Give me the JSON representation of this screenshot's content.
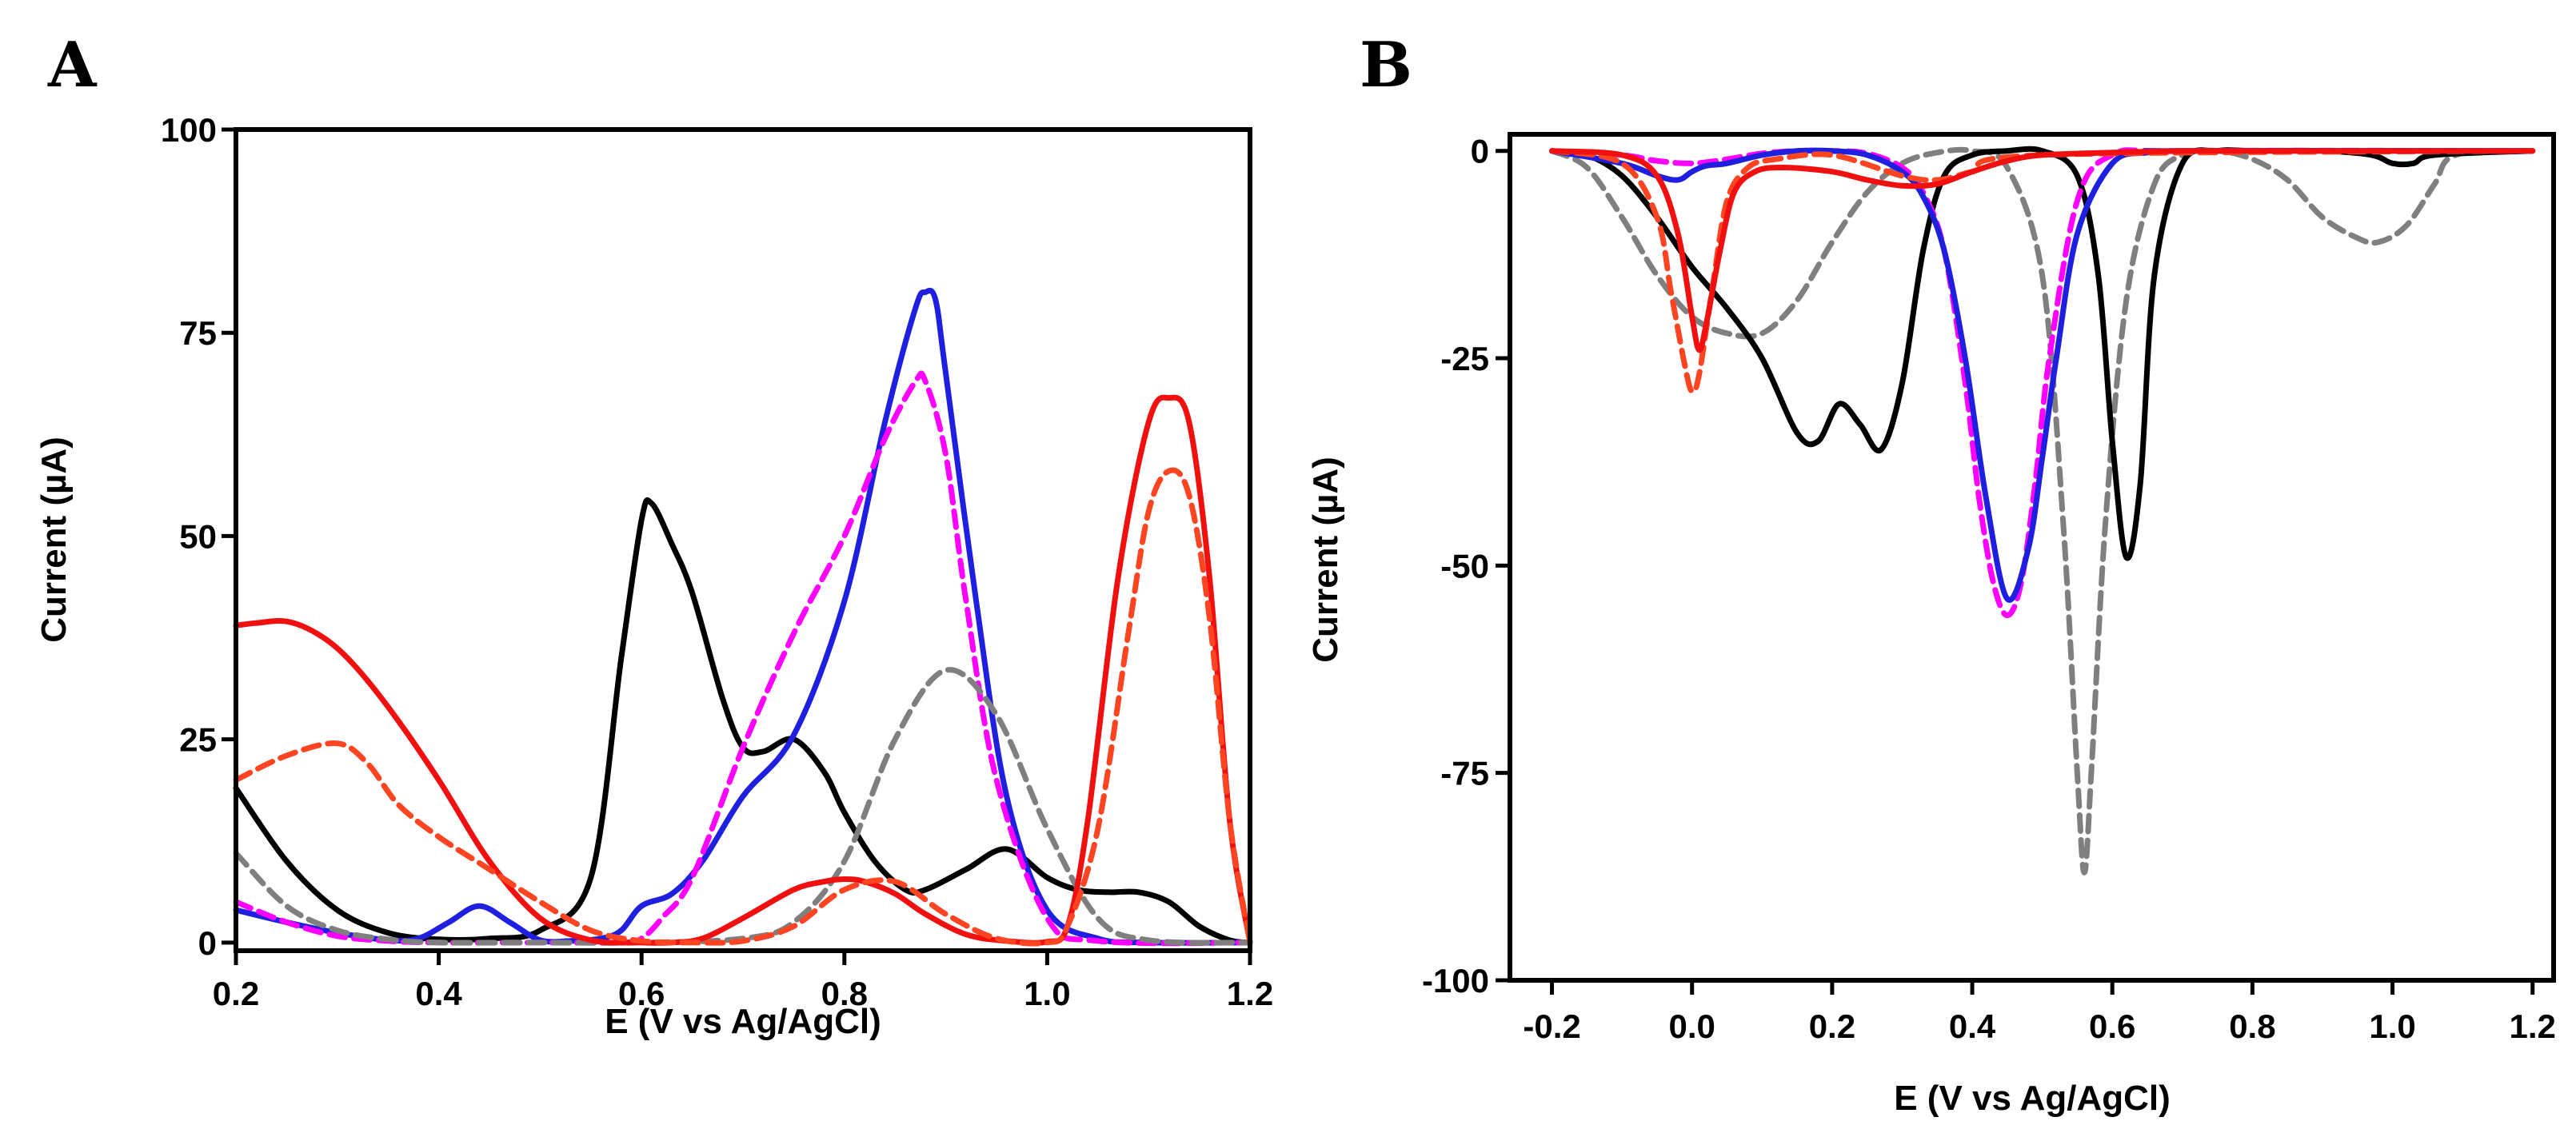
{
  "chart_data": [
    {
      "type": "line",
      "panel_label": "A",
      "xlabel": "E (V vs Ag/AgCl)",
      "ylabel": "Current (µA)",
      "xlim": [
        0.2,
        1.2
      ],
      "ylim": [
        -1,
        100
      ],
      "xticks": [
        0.2,
        0.4,
        0.6,
        0.8,
        1.0,
        1.2
      ],
      "xtick_labels": [
        "0.2",
        "0.4",
        "0.6",
        "0.8",
        "1.0",
        "1.2"
      ],
      "yticks": [
        0,
        25,
        50,
        75,
        100
      ],
      "ytick_labels": [
        "0",
        "25",
        "50",
        "75",
        "100"
      ],
      "grid": false,
      "series": [
        {
          "name": "black",
          "color": "#000000",
          "dashed": false,
          "x": [
            0.2,
            0.25,
            0.3,
            0.35,
            0.4,
            0.45,
            0.5,
            0.55,
            0.58,
            0.6,
            0.61,
            0.63,
            0.65,
            0.68,
            0.7,
            0.72,
            0.75,
            0.78,
            0.8,
            0.83,
            0.86,
            0.88,
            0.92,
            0.96,
            1.0,
            1.03,
            1.06,
            1.09,
            1.12,
            1.15,
            1.18,
            1.2
          ],
          "y": [
            19,
            10,
            4,
            1.2,
            0.4,
            0.5,
            1.5,
            8,
            35,
            52,
            54,
            49,
            43,
            30,
            24,
            23.5,
            25,
            21,
            16,
            10,
            6.5,
            6.5,
            9,
            11.5,
            8,
            6.5,
            6.2,
            6.2,
            5,
            2,
            0.3,
            0
          ]
        },
        {
          "name": "blue",
          "color": "#1f1fe0",
          "dashed": false,
          "x": [
            0.2,
            0.25,
            0.3,
            0.35,
            0.38,
            0.41,
            0.44,
            0.47,
            0.5,
            0.53,
            0.56,
            0.58,
            0.6,
            0.63,
            0.66,
            0.7,
            0.75,
            0.8,
            0.84,
            0.87,
            0.88,
            0.89,
            0.9,
            0.93,
            0.96,
            1.0,
            1.05,
            1.1,
            1.2
          ],
          "y": [
            4,
            2.5,
            1.2,
            0.3,
            0.5,
            2.5,
            4.5,
            2.5,
            0.3,
            0.2,
            0.5,
            1.5,
            4.5,
            6,
            10,
            18,
            25.5,
            42,
            64,
            78,
            80,
            79,
            70,
            42,
            18,
            4,
            0.5,
            0,
            0
          ]
        },
        {
          "name": "magenta dashed",
          "color": "#ff00ff",
          "dashed": true,
          "x": [
            0.2,
            0.25,
            0.3,
            0.35,
            0.4,
            0.5,
            0.58,
            0.6,
            0.62,
            0.65,
            0.7,
            0.75,
            0.8,
            0.84,
            0.87,
            0.88,
            0.9,
            0.92,
            0.95,
            1.0,
            1.05,
            1.2
          ],
          "y": [
            5,
            2.5,
            0.8,
            0.2,
            0,
            0,
            0,
            0.5,
            3,
            8,
            24,
            38,
            50,
            62,
            69,
            69,
            60,
            42,
            20,
            3,
            0.2,
            0
          ]
        },
        {
          "name": "gray dashed",
          "color": "#7f7f7f",
          "dashed": true,
          "x": [
            0.2,
            0.25,
            0.3,
            0.35,
            0.4,
            0.5,
            0.6,
            0.7,
            0.75,
            0.8,
            0.85,
            0.9,
            0.95,
            1.0,
            1.05,
            1.1,
            1.2
          ],
          "y": [
            11,
            4.5,
            1.5,
            0.4,
            0,
            0,
            0,
            0.5,
            2.5,
            10,
            25,
            33.5,
            28,
            14,
            3,
            0.3,
            0
          ]
        },
        {
          "name": "red",
          "color": "#f01010",
          "dashed": false,
          "x": [
            0.2,
            0.22,
            0.25,
            0.28,
            0.31,
            0.35,
            0.4,
            0.45,
            0.5,
            0.55,
            0.6,
            0.63,
            0.66,
            0.7,
            0.75,
            0.78,
            0.8,
            0.82,
            0.85,
            0.88,
            0.92,
            0.96,
            1.0,
            1.02,
            1.04,
            1.07,
            1.1,
            1.12,
            1.14,
            1.16,
            1.18,
            1.2
          ],
          "y": [
            39,
            39.3,
            39.5,
            38,
            35,
            29,
            20,
            10,
            3,
            0.3,
            0,
            0,
            0.5,
            3,
            6.5,
            7.5,
            7.8,
            7.5,
            6,
            3.5,
            1,
            0.2,
            0.1,
            2,
            15,
            45,
            64,
            67,
            64,
            45,
            15,
            0
          ]
        },
        {
          "name": "orange-red dashed",
          "color": "#ff4422",
          "dashed": true,
          "x": [
            0.2,
            0.25,
            0.3,
            0.33,
            0.36,
            0.4,
            0.45,
            0.5,
            0.55,
            0.6,
            0.65,
            0.7,
            0.75,
            0.8,
            0.85,
            0.9,
            0.95,
            1.0,
            1.02,
            1.05,
            1.08,
            1.1,
            1.12,
            1.14,
            1.16,
            1.18,
            1.2
          ],
          "y": [
            20,
            23,
            24.5,
            22,
            17,
            13,
            9,
            5,
            1.5,
            0.2,
            0,
            0.2,
            2,
            6.5,
            7.5,
            3.5,
            0.5,
            0,
            2,
            14,
            38,
            53,
            58,
            55,
            40,
            15,
            0
          ]
        }
      ]
    },
    {
      "type": "line",
      "panel_label": "B",
      "xlabel": "E (V vs Ag/AgCl)",
      "ylabel": "Current (µA)",
      "xlim": [
        -0.26,
        1.23
      ],
      "ylim": [
        -100,
        2
      ],
      "xticks": [
        -0.2,
        0.0,
        0.2,
        0.4,
        0.6,
        0.8,
        1.0,
        1.2
      ],
      "xtick_labels": [
        "-0.2",
        "0.0",
        "0.2",
        "0.4",
        "0.6",
        "0.8",
        "1.0",
        "1.2"
      ],
      "yticks": [
        0,
        -25,
        -50,
        -75,
        -100
      ],
      "ytick_labels": [
        "0",
        "-25",
        "-50",
        "-75",
        "-100"
      ],
      "grid": false,
      "series": [
        {
          "name": "gray dashed",
          "color": "#7f7f7f",
          "dashed": true,
          "x": [
            -0.2,
            -0.15,
            -0.1,
            -0.05,
            0.0,
            0.05,
            0.1,
            0.15,
            0.2,
            0.25,
            0.3,
            0.35,
            0.4,
            0.45,
            0.5,
            0.53,
            0.55,
            0.56,
            0.57,
            0.59,
            0.62,
            0.66,
            0.7,
            0.75,
            0.8,
            0.85,
            0.9,
            0.95,
            0.98,
            1.02,
            1.06,
            1.09,
            1.2
          ],
          "y": [
            0,
            -2,
            -8,
            -15,
            -20,
            -22,
            -22,
            -18,
            -11,
            -5,
            -1.5,
            -0.2,
            0,
            -2,
            -15,
            -45,
            -75,
            -87,
            -75,
            -45,
            -18,
            -4,
            -0.5,
            0,
            -1,
            -3.5,
            -8,
            -10.5,
            -11,
            -9,
            -4,
            -0.5,
            0
          ]
        },
        {
          "name": "black",
          "color": "#000000",
          "dashed": false,
          "x": [
            -0.2,
            -0.15,
            -0.1,
            -0.05,
            0.0,
            0.05,
            0.1,
            0.15,
            0.18,
            0.21,
            0.24,
            0.27,
            0.3,
            0.33,
            0.36,
            0.4,
            0.45,
            0.5,
            0.55,
            0.58,
            0.6,
            0.62,
            0.64,
            0.66,
            0.7,
            0.75,
            0.8,
            0.9,
            0.97,
            1.0,
            1.03,
            1.06,
            1.2
          ],
          "y": [
            0,
            -0.5,
            -3,
            -8,
            -14,
            -19,
            -25,
            -34,
            -35,
            -30.5,
            -33,
            -36,
            -28,
            -12,
            -3,
            -0.5,
            0,
            0,
            -3,
            -15,
            -35,
            -49,
            -40,
            -15,
            -1.5,
            0,
            0,
            0,
            -0.5,
            -1.5,
            -1.5,
            -0.5,
            0
          ]
        },
        {
          "name": "magenta dashed",
          "color": "#ff00ff",
          "dashed": true,
          "x": [
            -0.2,
            -0.1,
            -0.05,
            0.0,
            0.05,
            0.1,
            0.15,
            0.2,
            0.25,
            0.3,
            0.33,
            0.36,
            0.39,
            0.41,
            0.43,
            0.45,
            0.47,
            0.49,
            0.51,
            0.55,
            0.6,
            0.7,
            1.2
          ],
          "y": [
            0,
            -0.5,
            -1.2,
            -1.5,
            -1,
            -0.3,
            0,
            0,
            -0.3,
            -2,
            -5,
            -12,
            -28,
            -42,
            -52,
            -56,
            -52,
            -40,
            -25,
            -6,
            -0.5,
            0,
            0
          ]
        },
        {
          "name": "blue",
          "color": "#1f1fe0",
          "dashed": false,
          "x": [
            -0.2,
            -0.1,
            -0.05,
            -0.02,
            0.0,
            0.02,
            0.05,
            0.1,
            0.15,
            0.2,
            0.25,
            0.3,
            0.33,
            0.36,
            0.39,
            0.42,
            0.45,
            0.48,
            0.5,
            0.52,
            0.55,
            0.6,
            0.65,
            0.7,
            1.2
          ],
          "y": [
            0,
            -1.5,
            -3,
            -3.5,
            -2.5,
            -1.8,
            -1.5,
            -0.5,
            0,
            0,
            -0.5,
            -2.5,
            -5.5,
            -12,
            -25,
            -42,
            -54,
            -48,
            -37,
            -25,
            -10,
            -1.5,
            -0.2,
            0,
            0
          ]
        },
        {
          "name": "orange-red dashed",
          "color": "#ff4422",
          "dashed": true,
          "x": [
            -0.2,
            -0.1,
            -0.05,
            -0.03,
            -0.01,
            0.0,
            0.01,
            0.03,
            0.05,
            0.08,
            0.12,
            0.2,
            0.3,
            0.35,
            0.4,
            0.5,
            1.2
          ],
          "y": [
            0,
            -1.5,
            -8,
            -17,
            -26,
            -29,
            -27,
            -16,
            -6,
            -2,
            -1,
            -0.5,
            -3,
            -3.5,
            -2.5,
            -0.5,
            0
          ]
        },
        {
          "name": "red",
          "color": "#f01010",
          "dashed": false,
          "x": [
            -0.2,
            -0.1,
            -0.05,
            -0.02,
            0.0,
            0.01,
            0.02,
            0.04,
            0.06,
            0.09,
            0.13,
            0.2,
            0.25,
            0.3,
            0.35,
            0.4,
            0.45,
            0.5,
            0.6,
            0.7,
            0.8,
            1.0,
            1.2
          ],
          "y": [
            0,
            -0.5,
            -3,
            -10,
            -20,
            -24,
            -21,
            -12,
            -5,
            -2.5,
            -2,
            -2.5,
            -3.5,
            -4.2,
            -4,
            -2.5,
            -1.2,
            -0.5,
            -0.2,
            0,
            0,
            0,
            0
          ]
        }
      ]
    }
  ]
}
